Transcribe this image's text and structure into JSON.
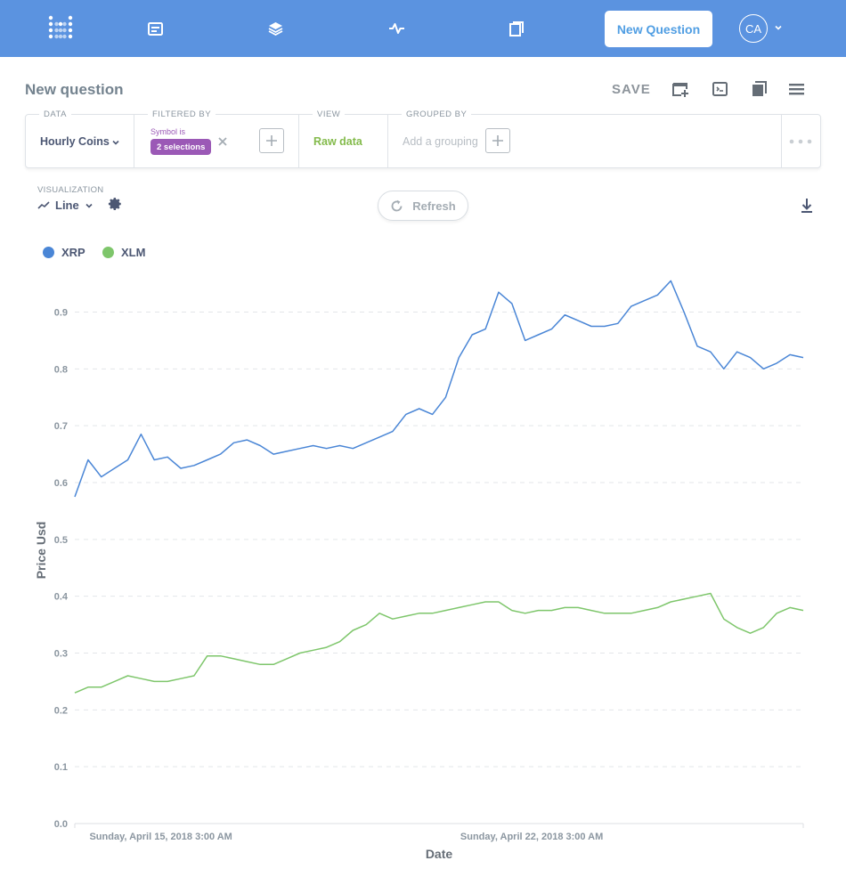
{
  "colors": {
    "nav_bg": "#5b93e0",
    "brand": "#509ee3",
    "series_xrp": "#4a86d6",
    "series_xlm": "#7ec66b",
    "filter": "#9b59b6",
    "raw_data": "#84bb4c"
  },
  "nav": {
    "icons": [
      "metabase-logo-icon",
      "browse-data-icon",
      "layers-icon",
      "pulse-activity-icon",
      "notebook-icon"
    ],
    "new_question_label": "New Question",
    "avatar_initials": "CA"
  },
  "header": {
    "title": "New question",
    "save_label": "SAVE",
    "icons": [
      "add-to-dashboard-icon",
      "sql-console-icon",
      "notebook-icon",
      "menu-icon"
    ]
  },
  "query_builder": {
    "data_label": "DATA",
    "data_value": "Hourly Coins",
    "filtered_label": "FILTERED BY",
    "filter_name": "Symbol is",
    "filter_value": "2 selections",
    "view_label": "VIEW",
    "view_value": "Raw data",
    "grouped_label": "GROUPED BY",
    "grouping_placeholder": "Add a grouping"
  },
  "visualization": {
    "label": "VISUALIZATION",
    "type": "Line",
    "refresh_label": "Refresh"
  },
  "chart_data": {
    "type": "line",
    "xlabel": "Date",
    "ylabel": "Price Usd",
    "ylim": [
      0,
      0.95
    ],
    "yticks": [
      "0.0",
      "0.1",
      "0.2",
      "0.3",
      "0.4",
      "0.5",
      "0.6",
      "0.7",
      "0.8",
      "0.9"
    ],
    "x_start": "2018-04-13T12:00",
    "x_end": "2018-04-27T06:00",
    "xticks": [
      {
        "x": "2018-04-15T03:00",
        "label": "Sunday, April 15, 2018 3:00 AM"
      },
      {
        "x": "2018-04-22T03:00",
        "label": "Sunday, April 22, 2018 3:00 AM"
      }
    ],
    "grid": true,
    "legend_position": "top-left",
    "series": [
      {
        "name": "XRP",
        "x": [
          "2018-04-13T12:00",
          "2018-04-13T18:00",
          "2018-04-14T00:00",
          "2018-04-14T06:00",
          "2018-04-14T12:00",
          "2018-04-14T18:00",
          "2018-04-15T00:00",
          "2018-04-15T06:00",
          "2018-04-15T12:00",
          "2018-04-15T18:00",
          "2018-04-16T00:00",
          "2018-04-16T06:00",
          "2018-04-16T12:00",
          "2018-04-16T18:00",
          "2018-04-17T00:00",
          "2018-04-17T06:00",
          "2018-04-17T12:00",
          "2018-04-17T18:00",
          "2018-04-18T00:00",
          "2018-04-18T06:00",
          "2018-04-18T12:00",
          "2018-04-18T18:00",
          "2018-04-19T00:00",
          "2018-04-19T06:00",
          "2018-04-19T12:00",
          "2018-04-19T18:00",
          "2018-04-20T00:00",
          "2018-04-20T06:00",
          "2018-04-20T12:00",
          "2018-04-20T18:00",
          "2018-04-21T00:00",
          "2018-04-21T06:00",
          "2018-04-21T12:00",
          "2018-04-21T18:00",
          "2018-04-22T00:00",
          "2018-04-22T06:00",
          "2018-04-22T12:00",
          "2018-04-22T18:00",
          "2018-04-23T00:00",
          "2018-04-23T06:00",
          "2018-04-23T12:00",
          "2018-04-23T18:00",
          "2018-04-24T00:00",
          "2018-04-24T06:00",
          "2018-04-24T12:00",
          "2018-04-24T18:00",
          "2018-04-25T00:00",
          "2018-04-25T06:00",
          "2018-04-25T12:00",
          "2018-04-25T18:00",
          "2018-04-26T00:00",
          "2018-04-26T06:00",
          "2018-04-26T12:00",
          "2018-04-26T18:00",
          "2018-04-27T00:00",
          "2018-04-27T06:00"
        ],
        "y": [
          0.575,
          0.64,
          0.61,
          0.625,
          0.64,
          0.685,
          0.64,
          0.645,
          0.625,
          0.63,
          0.64,
          0.65,
          0.67,
          0.675,
          0.665,
          0.65,
          0.655,
          0.66,
          0.665,
          0.66,
          0.665,
          0.66,
          0.67,
          0.68,
          0.69,
          0.72,
          0.73,
          0.72,
          0.75,
          0.82,
          0.86,
          0.87,
          0.935,
          0.915,
          0.85,
          0.86,
          0.87,
          0.895,
          0.885,
          0.875,
          0.875,
          0.88,
          0.91,
          0.92,
          0.93,
          0.955,
          0.9,
          0.84,
          0.83,
          0.8,
          0.83,
          0.82,
          0.8,
          0.81,
          0.825,
          0.82
        ]
      },
      {
        "name": "XLM",
        "x": [
          "2018-04-13T12:00",
          "2018-04-13T18:00",
          "2018-04-14T00:00",
          "2018-04-14T06:00",
          "2018-04-14T12:00",
          "2018-04-14T18:00",
          "2018-04-15T00:00",
          "2018-04-15T06:00",
          "2018-04-15T12:00",
          "2018-04-15T18:00",
          "2018-04-16T00:00",
          "2018-04-16T06:00",
          "2018-04-16T12:00",
          "2018-04-16T18:00",
          "2018-04-17T00:00",
          "2018-04-17T06:00",
          "2018-04-17T12:00",
          "2018-04-17T18:00",
          "2018-04-18T00:00",
          "2018-04-18T06:00",
          "2018-04-18T12:00",
          "2018-04-18T18:00",
          "2018-04-19T00:00",
          "2018-04-19T06:00",
          "2018-04-19T12:00",
          "2018-04-19T18:00",
          "2018-04-20T00:00",
          "2018-04-20T06:00",
          "2018-04-20T12:00",
          "2018-04-20T18:00",
          "2018-04-21T00:00",
          "2018-04-21T06:00",
          "2018-04-21T12:00",
          "2018-04-21T18:00",
          "2018-04-22T00:00",
          "2018-04-22T06:00",
          "2018-04-22T12:00",
          "2018-04-22T18:00",
          "2018-04-23T00:00",
          "2018-04-23T06:00",
          "2018-04-23T12:00",
          "2018-04-23T18:00",
          "2018-04-24T00:00",
          "2018-04-24T06:00",
          "2018-04-24T12:00",
          "2018-04-24T18:00",
          "2018-04-25T00:00",
          "2018-04-25T06:00",
          "2018-04-25T12:00",
          "2018-04-25T18:00",
          "2018-04-26T00:00",
          "2018-04-26T06:00",
          "2018-04-26T12:00",
          "2018-04-26T18:00",
          "2018-04-27T00:00",
          "2018-04-27T06:00"
        ],
        "y": [
          0.23,
          0.24,
          0.24,
          0.25,
          0.26,
          0.255,
          0.25,
          0.25,
          0.255,
          0.26,
          0.295,
          0.295,
          0.29,
          0.285,
          0.28,
          0.28,
          0.29,
          0.3,
          0.305,
          0.31,
          0.32,
          0.34,
          0.35,
          0.37,
          0.36,
          0.365,
          0.37,
          0.37,
          0.375,
          0.38,
          0.385,
          0.39,
          0.39,
          0.375,
          0.37,
          0.375,
          0.375,
          0.38,
          0.38,
          0.375,
          0.37,
          0.37,
          0.37,
          0.375,
          0.38,
          0.39,
          0.395,
          0.4,
          0.405,
          0.36,
          0.345,
          0.335,
          0.345,
          0.37,
          0.38,
          0.375
        ]
      }
    ]
  }
}
